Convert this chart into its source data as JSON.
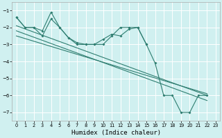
{
  "xlabel": "Humidex (Indice chaleur)",
  "bg_color": "#d0f0f0",
  "grid_color": "#ffffff",
  "line_color": "#2e7d70",
  "xlim": [
    -0.5,
    23.5
  ],
  "ylim": [
    -7.5,
    -0.5
  ],
  "yticks": [
    -7,
    -6,
    -5,
    -4,
    -3,
    -2,
    -1
  ],
  "xticks": [
    0,
    1,
    2,
    3,
    4,
    5,
    6,
    7,
    8,
    9,
    10,
    11,
    12,
    13,
    14,
    15,
    16,
    17,
    18,
    19,
    20,
    21,
    22,
    23
  ],
  "line1_x": [
    0,
    1,
    2,
    3,
    4,
    5,
    6,
    7,
    8,
    9,
    10,
    11,
    12,
    13,
    14,
    15,
    16,
    17,
    18,
    19,
    20,
    21,
    22
  ],
  "line1_y": [
    -1.4,
    -2.0,
    -2.0,
    -2.2,
    -1.1,
    -2.0,
    -2.6,
    -3.0,
    -3.0,
    -3.0,
    -3.0,
    -2.5,
    -2.0,
    -2.0,
    -2.0,
    -3.0,
    -4.1,
    -6.0,
    -6.0,
    -7.0,
    -7.0,
    -6.0,
    -6.0
  ],
  "line2_x": [
    0,
    1,
    2,
    3,
    4,
    5,
    6,
    7,
    8,
    9,
    10,
    11,
    12,
    13,
    14,
    15
  ],
  "line2_y": [
    -1.4,
    -2.0,
    -2.0,
    -2.5,
    -1.5,
    -2.0,
    -2.6,
    -2.9,
    -3.0,
    -3.0,
    -2.7,
    -2.4,
    -2.5,
    -2.1,
    -2.0,
    -3.0
  ],
  "trend1_x": [
    0,
    22
  ],
  "trend1_y": [
    -1.9,
    -6.0
  ],
  "trend2_x": [
    0,
    22
  ],
  "trend2_y": [
    -2.2,
    -6.3
  ],
  "trend3_x": [
    0,
    22
  ],
  "trend3_y": [
    -2.5,
    -5.9
  ]
}
